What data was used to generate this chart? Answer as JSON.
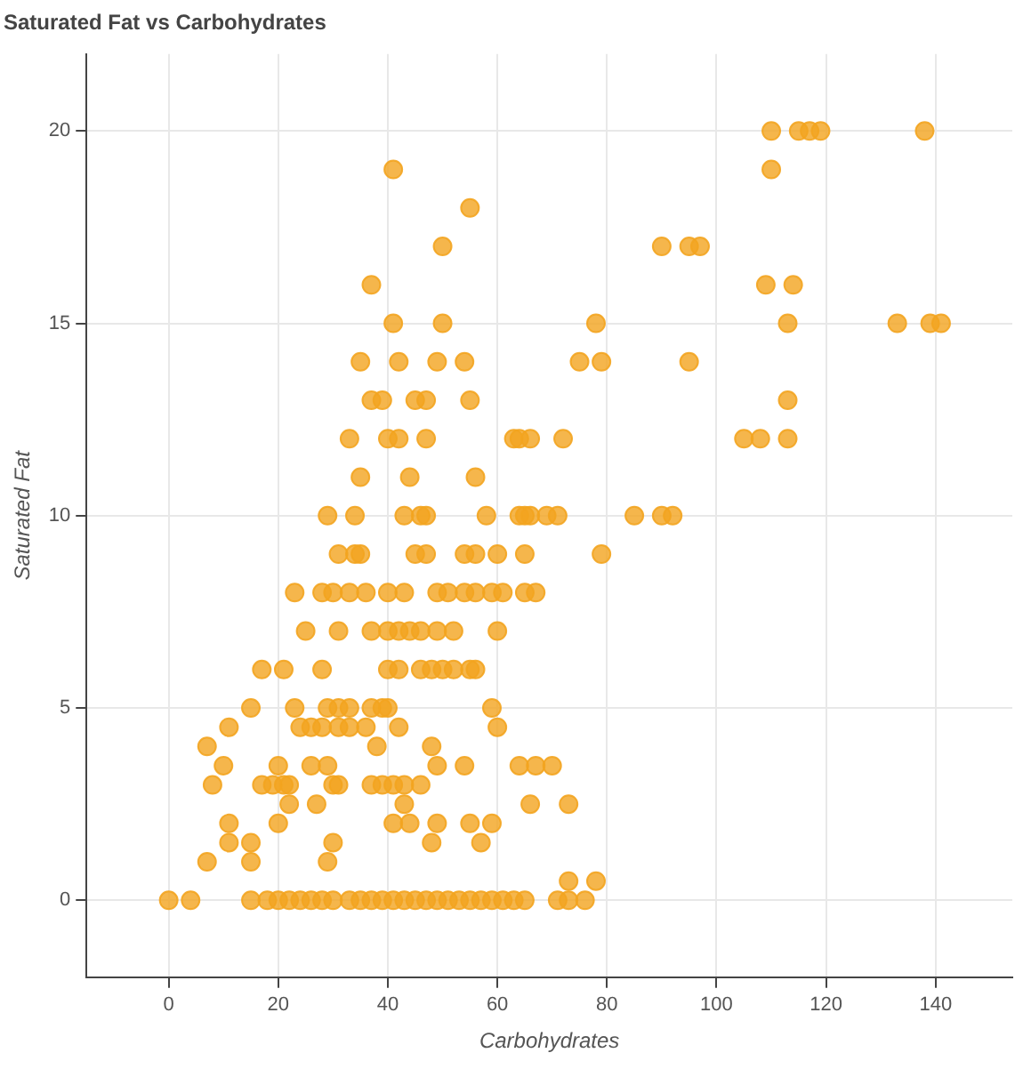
{
  "chart_data": {
    "type": "scatter",
    "title": "Saturated Fat vs Carbohydrates",
    "xlabel": "Carbohydrates",
    "ylabel": "Saturated Fat",
    "xlim": [
      -15,
      154
    ],
    "ylim": [
      -2,
      22
    ],
    "xticks": [
      0,
      20,
      40,
      60,
      80,
      100,
      120,
      140
    ],
    "yticks": [
      0,
      5,
      10,
      15,
      20
    ],
    "grid": true,
    "marker": "circle",
    "legend": false,
    "series": [
      {
        "color": "#f3a41f",
        "x": [
          110,
          115,
          117,
          119,
          138,
          41,
          110,
          55,
          50,
          90,
          95,
          97,
          37,
          109,
          114,
          41,
          50,
          78,
          113,
          133,
          139,
          141,
          35,
          42,
          49,
          54,
          75,
          79,
          95,
          37,
          39,
          45,
          47,
          55,
          113,
          33,
          40,
          42,
          47,
          63,
          64,
          66,
          72,
          105,
          108,
          113,
          35,
          44,
          56,
          29,
          34,
          43,
          46,
          47,
          58,
          64,
          65,
          66,
          69,
          71,
          85,
          90,
          92,
          31,
          34,
          35,
          45,
          47,
          54,
          56,
          60,
          65,
          79,
          23,
          28,
          30,
          33,
          36,
          40,
          43,
          49,
          51,
          54,
          56,
          59,
          61,
          65,
          67,
          25,
          31,
          37,
          40,
          42,
          44,
          46,
          49,
          52,
          60,
          17,
          21,
          28,
          40,
          42,
          46,
          48,
          50,
          52,
          55,
          56,
          15,
          23,
          29,
          31,
          33,
          37,
          39,
          40,
          59,
          11,
          24,
          26,
          28,
          31,
          33,
          36,
          42,
          60,
          7,
          38,
          48,
          10,
          20,
          26,
          29,
          49,
          54,
          64,
          67,
          70,
          8,
          17,
          19,
          21,
          22,
          30,
          31,
          37,
          39,
          41,
          43,
          46,
          22,
          27,
          43,
          66,
          73,
          11,
          20,
          41,
          44,
          49,
          55,
          59,
          11,
          15,
          30,
          48,
          57,
          7,
          15,
          29,
          73,
          78,
          0,
          4,
          15,
          18,
          20,
          22,
          24,
          26,
          28,
          30,
          33,
          35,
          37,
          39,
          41,
          43,
          45,
          47,
          49,
          51,
          53,
          55,
          57,
          59,
          61,
          63,
          65,
          71,
          73,
          76
        ],
        "values": [
          20,
          20,
          20,
          20,
          20,
          19,
          19,
          18,
          17,
          17,
          17,
          17,
          16,
          16,
          16,
          15,
          15,
          15,
          15,
          15,
          15,
          15,
          14,
          14,
          14,
          14,
          14,
          14,
          14,
          13,
          13,
          13,
          13,
          13,
          13,
          12,
          12,
          12,
          12,
          12,
          12,
          12,
          12,
          12,
          12,
          12,
          11,
          11,
          11,
          10,
          10,
          10,
          10,
          10,
          10,
          10,
          10,
          10,
          10,
          10,
          10,
          10,
          10,
          9,
          9,
          9,
          9,
          9,
          9,
          9,
          9,
          9,
          9,
          8,
          8,
          8,
          8,
          8,
          8,
          8,
          8,
          8,
          8,
          8,
          8,
          8,
          8,
          8,
          7,
          7,
          7,
          7,
          7,
          7,
          7,
          7,
          7,
          7,
          6,
          6,
          6,
          6,
          6,
          6,
          6,
          6,
          6,
          6,
          6,
          5,
          5,
          5,
          5,
          5,
          5,
          5,
          5,
          5,
          4.5,
          4.5,
          4.5,
          4.5,
          4.5,
          4.5,
          4.5,
          4.5,
          4.5,
          4,
          4,
          4,
          3.5,
          3.5,
          3.5,
          3.5,
          3.5,
          3.5,
          3.5,
          3.5,
          3.5,
          3,
          3,
          3,
          3,
          3,
          3,
          3,
          3,
          3,
          3,
          3,
          3,
          2.5,
          2.5,
          2.5,
          2.5,
          2.5,
          2,
          2,
          2,
          2,
          2,
          2,
          2,
          1.5,
          1.5,
          1.5,
          1.5,
          1.5,
          1,
          1,
          1,
          0.5,
          0.5,
          0,
          0,
          0,
          0,
          0,
          0,
          0,
          0,
          0,
          0,
          0,
          0,
          0,
          0,
          0,
          0,
          0,
          0,
          0,
          0,
          0,
          0,
          0,
          0,
          0,
          0,
          0,
          0,
          0,
          0
        ]
      }
    ]
  }
}
